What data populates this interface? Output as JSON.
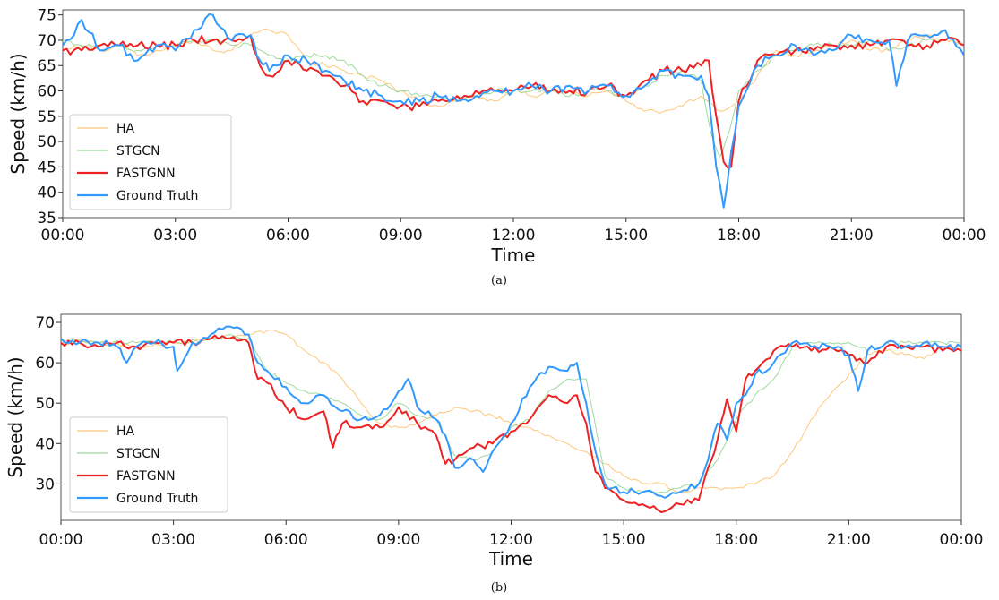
{
  "chart_data": [
    {
      "type": "line",
      "caption": "(a)",
      "xlabel": "Time",
      "ylabel": "Speed (km/h)",
      "xlim": [
        0,
        24
      ],
      "ylim": [
        35,
        76
      ],
      "x_ticks": [
        "00:00",
        "03:00",
        "06:00",
        "09:00",
        "12:00",
        "15:00",
        "18:00",
        "21:00",
        "00:00"
      ],
      "y_ticks": [
        35,
        40,
        45,
        50,
        55,
        60,
        65,
        70,
        75
      ],
      "legend_position": "lower-left",
      "series": [
        {
          "name": "HA",
          "color": "#ffc77a",
          "style": "thin",
          "x": [
            0,
            0.5,
            1,
            1.5,
            2,
            2.5,
            3,
            3.5,
            4,
            4.5,
            5,
            5.5,
            6,
            6.5,
            7,
            7.5,
            8,
            8.5,
            9,
            9.5,
            10,
            10.5,
            11,
            11.5,
            12,
            12.5,
            13,
            13.5,
            14,
            14.5,
            15,
            15.5,
            16,
            16.5,
            17,
            17.5,
            18,
            18.5,
            19,
            19.5,
            20,
            20.5,
            21,
            21.5,
            22,
            22.5,
            23,
            23.5,
            24
          ],
          "y": [
            68,
            69,
            68,
            69,
            67,
            68,
            69,
            70,
            68,
            68,
            71,
            72,
            71,
            66,
            65,
            64,
            63,
            62,
            60,
            58,
            57,
            58,
            59,
            58,
            60,
            59,
            60,
            60,
            59,
            60,
            58,
            56,
            56,
            57,
            59,
            56,
            58,
            63,
            68,
            67,
            68,
            69,
            70,
            68,
            68,
            70,
            71,
            70,
            69
          ]
        },
        {
          "name": "STGCN",
          "color": "#9ed99e",
          "style": "thin",
          "x": [
            0,
            0.5,
            1,
            1.5,
            2,
            2.5,
            3,
            3.5,
            4,
            4.5,
            5,
            5.5,
            6,
            6.5,
            7,
            7.5,
            8,
            8.5,
            9,
            9.5,
            10,
            10.5,
            11,
            11.5,
            12,
            12.5,
            13,
            13.5,
            14,
            14.5,
            15,
            15.5,
            16,
            16.5,
            17,
            17.25,
            17.5,
            17.75,
            18,
            18.5,
            19,
            19.5,
            20,
            20.5,
            21,
            21.5,
            22,
            22.5,
            23,
            23.5,
            24
          ],
          "y": [
            70,
            69,
            69,
            69,
            68,
            69,
            69,
            70,
            70,
            69,
            69,
            67,
            66,
            67,
            67,
            66,
            63,
            61,
            60,
            59,
            59,
            58,
            59,
            60,
            60,
            60,
            60,
            59,
            60,
            60,
            59,
            61,
            63,
            64,
            62,
            52,
            47,
            52,
            60,
            64,
            67,
            68,
            69,
            69,
            69,
            70,
            68,
            69,
            70,
            70,
            69
          ]
        },
        {
          "name": "FASTGNN",
          "color": "#ee2222",
          "style": "thick",
          "x": [
            0,
            0.5,
            1,
            1.5,
            2,
            2.5,
            3,
            3.5,
            4,
            4.5,
            5,
            5.25,
            5.5,
            6,
            6.5,
            7,
            7.5,
            8,
            8.5,
            9,
            9.5,
            10,
            10.5,
            11,
            11.5,
            12,
            12.5,
            13,
            13.5,
            14,
            14.5,
            15,
            15.5,
            16,
            16.5,
            17,
            17.2,
            17.4,
            17.6,
            17.8,
            18,
            18.5,
            19,
            19.5,
            20,
            20.5,
            21,
            21.5,
            22,
            22.5,
            23,
            23.5,
            24
          ],
          "y": [
            68,
            68,
            69,
            69,
            69,
            69,
            69,
            70,
            70,
            70,
            71,
            65,
            63,
            66,
            64,
            63,
            61,
            58,
            58,
            57,
            57,
            58,
            59,
            60,
            60,
            60,
            61,
            60,
            60,
            60,
            61,
            59,
            62,
            64,
            64,
            65,
            66,
            55,
            46,
            45,
            58,
            66,
            67,
            68,
            68,
            69,
            69,
            69,
            70,
            69,
            69,
            70,
            69
          ]
        },
        {
          "name": "Ground Truth",
          "color": "#3399ff",
          "style": "thick",
          "x": [
            0,
            0.3,
            0.5,
            1,
            1.5,
            2,
            2.5,
            3,
            3.5,
            4,
            4.5,
            5,
            5.25,
            5.5,
            6,
            6.5,
            7,
            7.5,
            8,
            8.5,
            9,
            9.5,
            10,
            10.5,
            11,
            11.5,
            12,
            12.5,
            13,
            13.5,
            14,
            14.5,
            15,
            15.5,
            16,
            16.5,
            17,
            17.2,
            17.4,
            17.6,
            17.8,
            18,
            18.5,
            19,
            19.5,
            20,
            20.5,
            21,
            21.5,
            22,
            22.2,
            22.5,
            23,
            23.5,
            24
          ],
          "y": [
            69,
            71,
            74,
            68,
            69,
            66,
            69,
            68,
            72,
            75,
            70,
            71,
            66,
            64,
            67,
            66,
            64,
            62,
            60,
            59,
            58,
            58,
            59,
            58,
            59,
            60,
            60,
            61,
            60,
            61,
            60,
            61,
            59,
            61,
            64,
            63,
            63,
            59,
            45,
            37,
            48,
            57,
            65,
            67,
            69,
            67,
            68,
            71,
            70,
            70,
            61,
            70,
            71,
            72,
            67
          ]
        }
      ]
    },
    {
      "type": "line",
      "caption": "(b)",
      "xlabel": "Time",
      "ylabel": "Speed (km/h)",
      "xlim": [
        0,
        24
      ],
      "ylim": [
        21,
        72
      ],
      "x_ticks": [
        "00:00",
        "03:00",
        "06:00",
        "09:00",
        "12:00",
        "15:00",
        "18:00",
        "21:00",
        "00:00"
      ],
      "y_ticks": [
        30,
        40,
        50,
        60,
        70
      ],
      "legend_position": "lower-left",
      "series": [
        {
          "name": "HA",
          "color": "#ffc77a",
          "style": "thin",
          "x": [
            0,
            1,
            2,
            3,
            4,
            5,
            5.5,
            6,
            6.5,
            7,
            7.5,
            8,
            8.5,
            9,
            9.5,
            10,
            10.5,
            11,
            11.5,
            12,
            12.5,
            13,
            13.5,
            14,
            14.5,
            15,
            15.5,
            16,
            16.5,
            17,
            17.5,
            18,
            18.5,
            19,
            19.5,
            20,
            20.5,
            21,
            21.5,
            22,
            22.5,
            23,
            23.5,
            24
          ],
          "y": [
            65,
            65,
            64,
            65,
            66,
            67,
            68,
            67,
            63,
            60,
            56,
            50,
            45,
            44,
            45,
            47,
            49,
            48,
            47,
            45,
            44,
            42,
            40,
            38,
            35,
            32,
            30,
            30,
            28,
            29,
            29,
            29,
            30,
            32,
            38,
            46,
            52,
            57,
            62,
            63,
            62,
            61,
            64,
            64
          ]
        },
        {
          "name": "STGCN",
          "color": "#9ed99e",
          "style": "thin",
          "x": [
            0,
            1,
            2,
            3,
            4,
            4.5,
            5,
            5.5,
            6,
            6.5,
            7,
            7.5,
            8,
            8.5,
            9,
            9.5,
            10,
            10.5,
            11,
            11.5,
            12,
            12.5,
            13,
            13.5,
            14,
            14.5,
            15,
            15.5,
            16,
            16.5,
            17,
            17.5,
            18,
            18.5,
            19,
            19.5,
            20,
            20.5,
            21,
            21.5,
            22,
            22.5,
            23,
            23.5,
            24
          ],
          "y": [
            66,
            65,
            65,
            65,
            66,
            67,
            66,
            58,
            55,
            53,
            52,
            50,
            47,
            46,
            50,
            47,
            46,
            37,
            36,
            38,
            44,
            46,
            53,
            56,
            56,
            32,
            29,
            28,
            28,
            29,
            30,
            36,
            46,
            52,
            56,
            64,
            65,
            65,
            65,
            63,
            65,
            65,
            65,
            65,
            65
          ]
        },
        {
          "name": "FASTGNN",
          "color": "#ee2222",
          "style": "thick",
          "x": [
            0,
            0.5,
            1,
            1.5,
            2,
            2.5,
            3,
            3.5,
            4,
            4.5,
            5,
            5.25,
            5.5,
            6,
            6.5,
            7,
            7.25,
            7.5,
            8,
            8.5,
            9,
            9.5,
            10,
            10.25,
            10.5,
            11,
            11.5,
            12,
            12.5,
            13,
            13.5,
            13.75,
            14,
            14.25,
            14.5,
            15,
            15.5,
            16,
            16.5,
            17,
            17.25,
            17.5,
            17.75,
            18,
            18.25,
            18.5,
            19,
            19.5,
            20,
            20.5,
            21,
            21.5,
            22,
            22.5,
            23,
            23.5,
            24
          ],
          "y": [
            65,
            65,
            64,
            65,
            64,
            65,
            65,
            65,
            66,
            66,
            65,
            56,
            55,
            49,
            46,
            48,
            39,
            45,
            44,
            44,
            49,
            45,
            42,
            35,
            36,
            39,
            40,
            43,
            46,
            52,
            50,
            52,
            45,
            33,
            29,
            26,
            25,
            23,
            25,
            26,
            34,
            41,
            51,
            43,
            56,
            58,
            63,
            64,
            63,
            64,
            62,
            60,
            64,
            64,
            64,
            63,
            63
          ]
        },
        {
          "name": "Ground Truth",
          "color": "#3399ff",
          "style": "thick",
          "x": [
            0,
            0.5,
            1,
            1.5,
            1.75,
            2,
            2.5,
            3,
            3.1,
            3.5,
            4,
            4.5,
            5,
            5.25,
            5.5,
            6,
            6.5,
            7,
            7.5,
            8,
            8.5,
            9,
            9.25,
            9.5,
            10,
            10.25,
            10.5,
            11,
            11.25,
            11.5,
            12,
            12.5,
            13,
            13.5,
            13.75,
            14,
            14.25,
            14.5,
            15,
            15.5,
            16,
            16.5,
            17,
            17.25,
            17.5,
            17.75,
            18,
            18.25,
            18.5,
            19,
            19.5,
            20,
            20.5,
            21,
            21.25,
            21.5,
            22,
            22.5,
            23,
            23.5,
            24
          ],
          "y": [
            66,
            65,
            65,
            64,
            60,
            64,
            65,
            64,
            58,
            65,
            67,
            69,
            67,
            60,
            58,
            54,
            50,
            52,
            48,
            46,
            47,
            53,
            56,
            49,
            46,
            42,
            34,
            36,
            33,
            38,
            45,
            54,
            59,
            58,
            60,
            50,
            38,
            30,
            28,
            28,
            27,
            28,
            30,
            36,
            45,
            41,
            50,
            52,
            57,
            60,
            65,
            64,
            64,
            62,
            53,
            63,
            65,
            64,
            65,
            64,
            64
          ]
        }
      ]
    }
  ]
}
